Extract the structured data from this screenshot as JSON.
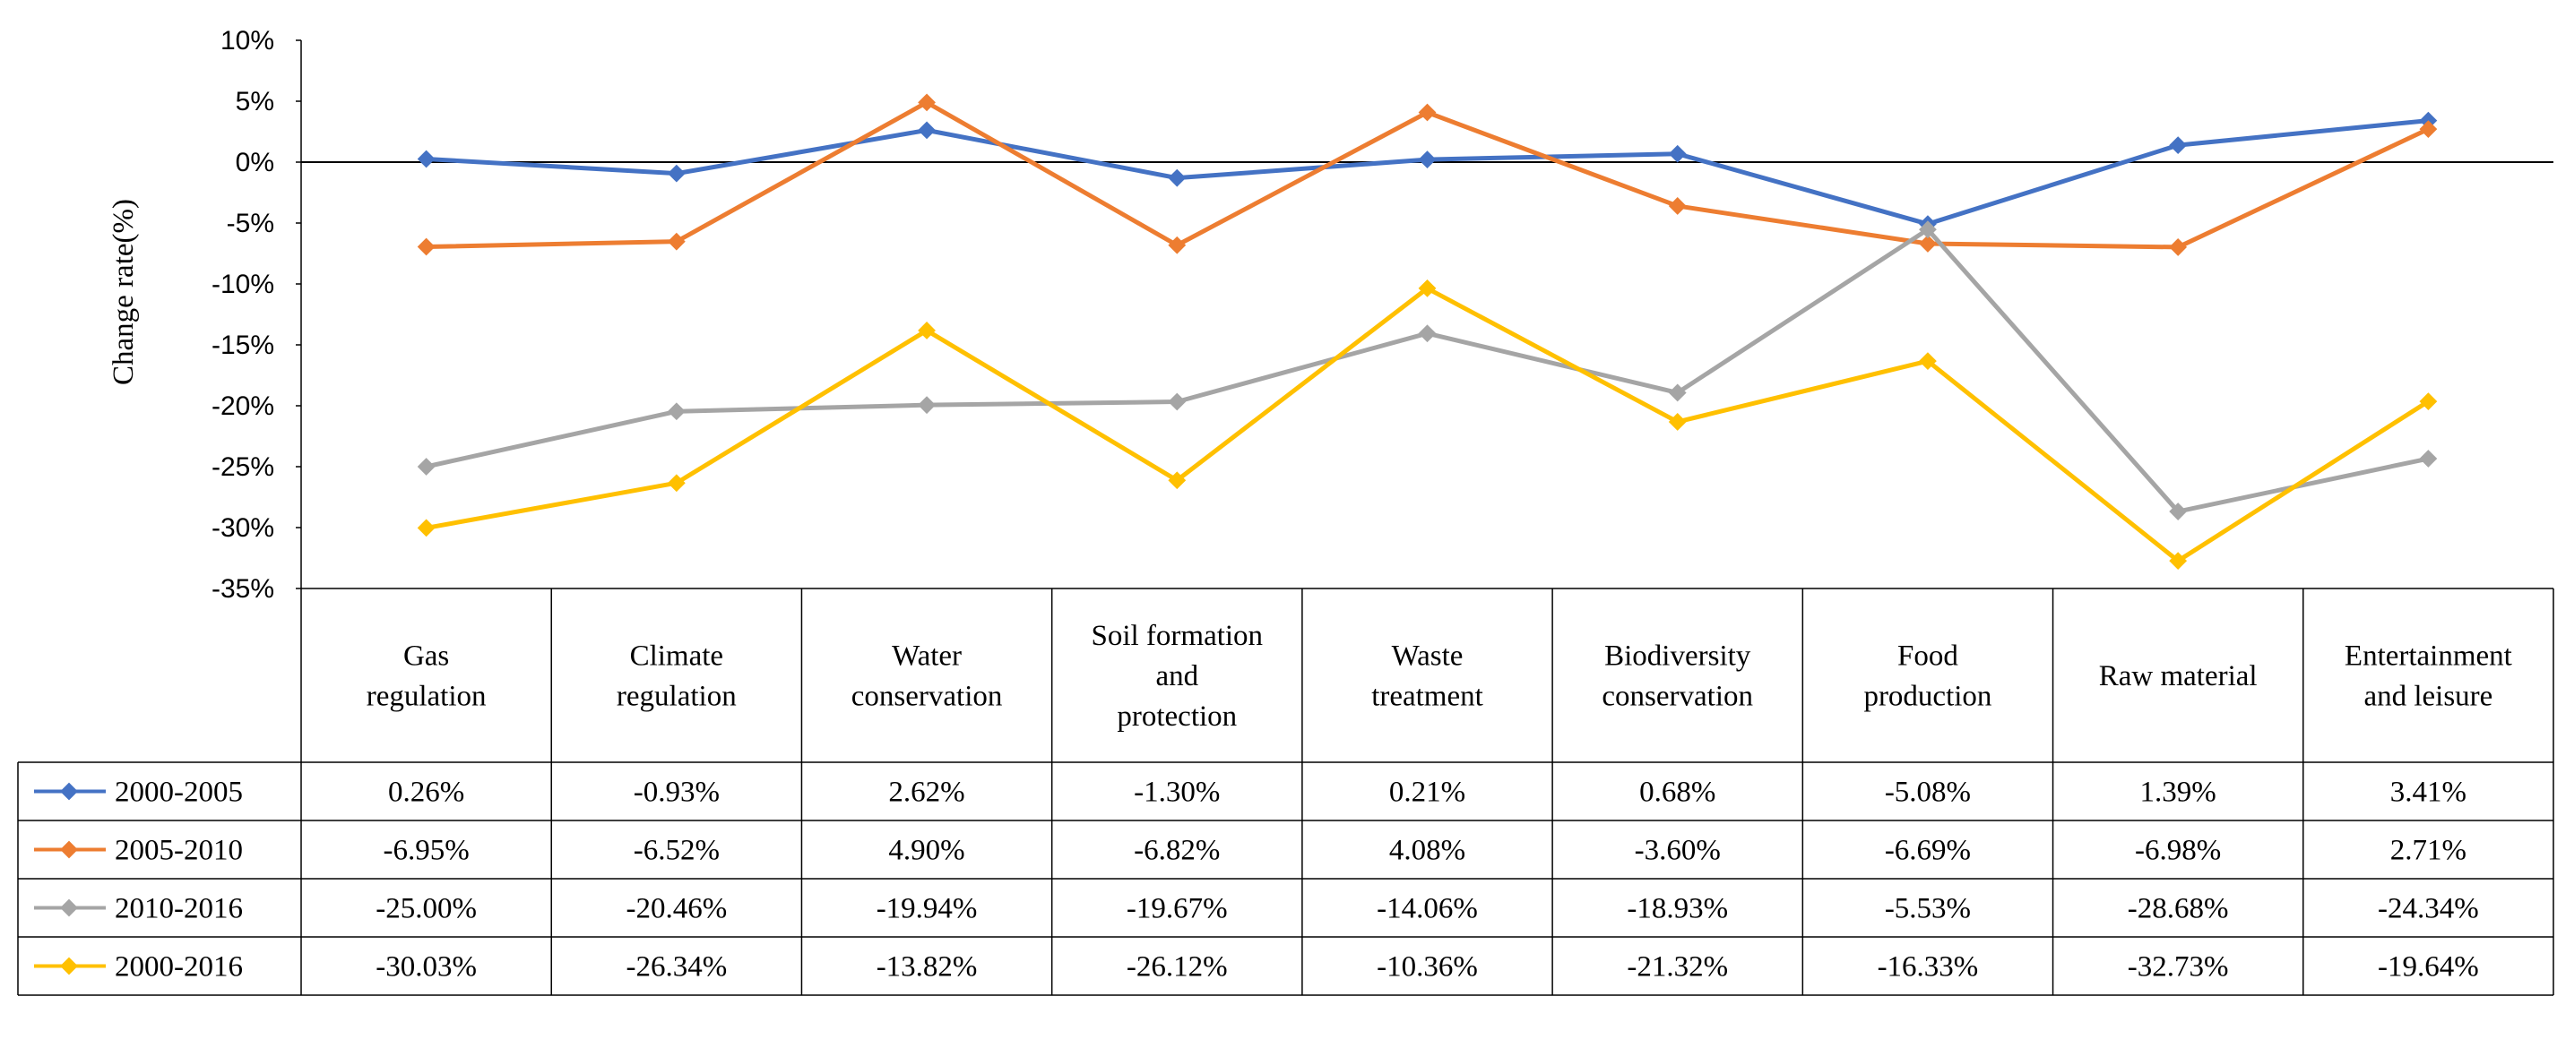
{
  "chart_data": {
    "type": "line",
    "title": "",
    "xlabel": "",
    "ylabel": "Change rate(%)",
    "ylim": [
      -35,
      10
    ],
    "ytick_labels": [
      "10%",
      "5%",
      "0%",
      "-5%",
      "-10%",
      "-15%",
      "-20%",
      "-25%",
      "-30%",
      "-35%"
    ],
    "categories": [
      [
        "Gas",
        "regulation"
      ],
      [
        "Climate",
        "regulation"
      ],
      [
        "Water",
        "conservation"
      ],
      [
        "Soil formation",
        "and",
        "protection"
      ],
      [
        "Waste",
        "treatment"
      ],
      [
        "Biodiversity",
        "conservation"
      ],
      [
        "Food",
        "production"
      ],
      [
        "Raw material"
      ],
      [
        "Entertainment",
        "and leisure"
      ]
    ],
    "series": [
      {
        "name": "2000-2005",
        "color": "#4472C4",
        "values": [
          0.26,
          -0.93,
          2.62,
          -1.3,
          0.21,
          0.68,
          -5.08,
          1.39,
          3.41
        ],
        "labels": [
          "0.26%",
          "-0.93%",
          "2.62%",
          "-1.30%",
          "0.21%",
          "0.68%",
          "-5.08%",
          "1.39%",
          "3.41%"
        ]
      },
      {
        "name": "2005-2010",
        "color": "#ED7D31",
        "values": [
          -6.95,
          -6.52,
          4.9,
          -6.82,
          4.08,
          -3.6,
          -6.69,
          -6.98,
          2.71
        ],
        "labels": [
          "-6.95%",
          "-6.52%",
          "4.90%",
          "-6.82%",
          "4.08%",
          "-3.60%",
          "-6.69%",
          "-6.98%",
          "2.71%"
        ]
      },
      {
        "name": "2010-2016",
        "color": "#A5A5A5",
        "values": [
          -25.0,
          -20.46,
          -19.94,
          -19.67,
          -14.06,
          -18.93,
          -5.53,
          -28.68,
          -24.34
        ],
        "labels": [
          "-25.00%",
          "-20.46%",
          "-19.94%",
          "-19.67%",
          "-14.06%",
          "-18.93%",
          "-5.53%",
          "-28.68%",
          "-24.34%"
        ]
      },
      {
        "name": "2000-2016",
        "color": "#FFC000",
        "values": [
          -30.03,
          -26.34,
          -13.82,
          -26.12,
          -10.36,
          -21.32,
          -16.33,
          -32.73,
          -19.64
        ],
        "labels": [
          "-30.03%",
          "-26.34%",
          "-13.82%",
          "-26.12%",
          "-10.36%",
          "-21.32%",
          "-16.33%",
          "-32.73%",
          "-19.64%"
        ]
      }
    ]
  }
}
